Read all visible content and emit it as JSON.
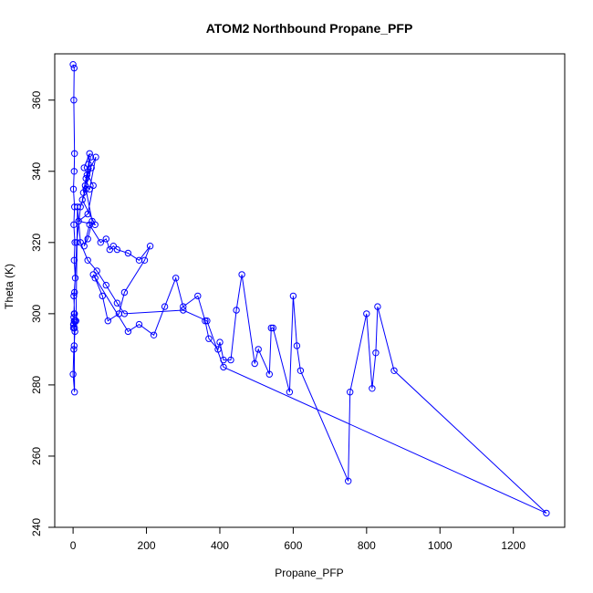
{
  "chart_data": {
    "type": "line",
    "title": "ATOM2 Northbound Propane_PFP",
    "xlabel": "Propane_PFP",
    "ylabel": "Theta (K)",
    "xlim": [
      -50,
      1340
    ],
    "ylim": [
      240,
      373
    ],
    "x_ticks": [
      0,
      200,
      400,
      600,
      800,
      1000,
      1200
    ],
    "y_ticks": [
      240,
      260,
      280,
      300,
      320,
      340,
      360
    ],
    "color": "#0000ff",
    "markers": "open-circle",
    "grid": false,
    "series": [
      {
        "x": [
          0,
          3,
          2,
          4,
          3,
          1,
          4,
          2,
          5,
          3,
          6,
          2,
          4,
          1,
          5,
          3,
          2,
          0,
          4,
          3,
          2,
          5,
          1,
          3,
          2,
          4,
          10,
          20,
          35,
          45,
          30,
          55,
          40,
          15,
          60,
          25,
          50,
          35,
          42,
          28,
          48,
          38,
          62,
          45,
          33,
          52,
          40,
          30,
          45,
          75,
          90,
          100,
          110,
          120,
          150,
          180,
          210,
          195,
          140,
          125,
          95,
          80,
          60,
          55,
          150,
          180,
          220,
          250,
          280,
          300,
          340,
          360,
          370,
          395,
          400,
          410,
          430,
          445,
          460,
          495,
          505,
          535,
          540,
          545,
          590,
          600,
          610,
          620,
          750,
          755,
          800,
          815,
          825,
          830,
          875,
          1290,
          410,
          365,
          300,
          140,
          120,
          90,
          65,
          40,
          20,
          12,
          8,
          4
        ],
        "y": [
          370,
          369,
          360,
          345,
          340,
          335,
          330,
          325,
          320,
          315,
          310,
          305,
          300,
          297,
          295,
          291,
          290,
          283,
          278,
          300,
          297,
          298,
          296,
          298,
          299,
          306,
          320,
          330,
          335,
          345,
          341,
          336,
          328,
          326,
          325,
          332,
          341,
          338,
          342,
          334,
          344,
          339,
          344,
          335,
          336,
          326,
          321,
          319,
          325,
          320,
          321,
          318,
          319,
          318,
          317,
          315,
          319,
          315,
          306,
          300,
          298,
          305,
          310,
          311,
          295,
          297,
          294,
          302,
          310,
          302,
          305,
          298,
          293,
          290,
          292,
          287,
          287,
          301,
          311,
          286,
          290,
          283,
          296,
          296,
          278,
          305,
          291,
          284,
          253,
          278,
          300,
          279,
          289,
          302,
          284,
          244,
          285,
          298,
          301,
          300,
          303,
          308,
          312,
          315,
          320,
          330,
          298,
          296
        ]
      }
    ]
  }
}
